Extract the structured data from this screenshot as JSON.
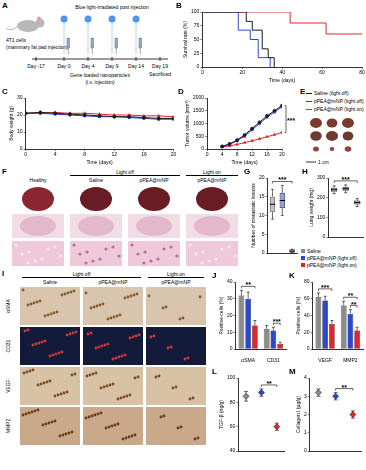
{
  "figure": {
    "schematic": {
      "panel": "A",
      "cells": "4T1 cells",
      "cells_note": "(mammary fat pad injection)",
      "light": "Blue light-irradiated post injection",
      "nanoparticles": "Gene loaded nanoparticles",
      "nanoparticles_note": "(i.v. injection)",
      "days": [
        "Day -17",
        "Day 0",
        "Day 4",
        "Day 9",
        "Day 14",
        "Day 19"
      ],
      "end": "Sacrificed"
    },
    "tumors": {
      "panel": "E",
      "legend": [
        {
          "name": "Saline (light off)",
          "color": "#1a1a1a"
        },
        {
          "name": "pPEA@mNP (light off)",
          "color": "#2c48d0"
        },
        {
          "name": "pPEA@mNP (light on)",
          "color": "#e3262c"
        }
      ],
      "scale_bar": "1 cm"
    },
    "lungs": {
      "panel": "F",
      "columns": [
        {
          "group": "Healthy"
        },
        {
          "group": "Saline",
          "condition": "Light off"
        },
        {
          "group": "pPEA@mNP",
          "condition": "Light off"
        },
        {
          "group": "pPEA@mNP",
          "condition": "Light on"
        }
      ]
    },
    "ihc": {
      "panel": "I",
      "columns": [
        {
          "group": "Saline",
          "condition": "Light off"
        },
        {
          "group": "pPEA@mNP",
          "condition": "Light off"
        },
        {
          "group": "pPEA@mNP",
          "condition": "Light on"
        }
      ],
      "stains": [
        "αSMA",
        "CD31",
        "VEGF",
        "MMP2"
      ]
    },
    "legend": [
      {
        "name": "Saline",
        "color": "#8c8c8c"
      },
      {
        "name": "pPEA@mNP (light off)",
        "color": "#2c48d0"
      },
      {
        "name": "pPEA@mNP (light on)",
        "color": "#e3262c"
      }
    ]
  },
  "chart_data": [
    {
      "panel": "B",
      "type": "line",
      "line_style": "steps",
      "grid": false,
      "xlabel": "Time (days)",
      "ylabel": "Survival rate (%)",
      "xlim": [
        0,
        80
      ],
      "xticks": [
        0,
        20,
        40,
        60,
        80
      ],
      "ylim": [
        0,
        100
      ],
      "yticks": [
        0,
        25,
        50,
        75,
        100
      ],
      "series": [
        {
          "color": "#1a1a1a",
          "marker": "none",
          "x": [
            0,
            22,
            25,
            30,
            33,
            36
          ],
          "values": [
            100,
            83,
            67,
            33,
            17,
            0
          ]
        },
        {
          "color": "#2c48d0",
          "marker": "none",
          "x": [
            0,
            18,
            24,
            28,
            34
          ],
          "values": [
            100,
            67,
            50,
            17,
            0
          ]
        },
        {
          "color": "#e3262c",
          "marker": "none",
          "x": [
            0,
            40,
            44,
            55,
            62,
            80
          ],
          "values": [
            100,
            100,
            80,
            80,
            60,
            60
          ]
        }
      ]
    },
    {
      "panel": "C",
      "type": "line",
      "grid": false,
      "xlabel": "Time (days)",
      "ylabel": "Body weight (g)",
      "xlim": [
        0,
        20
      ],
      "xticks": [
        0,
        4,
        8,
        12,
        16,
        20
      ],
      "ylim": [
        0,
        30
      ],
      "yticks": [
        0,
        10,
        20,
        30
      ],
      "series": [
        {
          "color": "#1a1a1a",
          "marker": "circle",
          "x": [
            0,
            2,
            4,
            6,
            8,
            10,
            12,
            14,
            16,
            18,
            20
          ],
          "values": [
            21,
            21.5,
            21,
            20.5,
            20,
            19.5,
            19,
            19,
            18.5,
            18,
            18
          ]
        },
        {
          "color": "#2c48d0",
          "marker": "rect",
          "x": [
            0,
            2,
            4,
            6,
            8,
            10,
            12,
            14,
            16,
            18,
            20
          ],
          "values": [
            21,
            21,
            20.5,
            20,
            19.5,
            19,
            19,
            18.5,
            18,
            17.5,
            17.5
          ]
        },
        {
          "color": "#e3262c",
          "marker": "triangle",
          "x": [
            0,
            2,
            4,
            6,
            8,
            10,
            12,
            14,
            16,
            18,
            20
          ],
          "values": [
            21,
            21.5,
            21.5,
            21,
            21,
            20.5,
            20,
            20,
            19.5,
            19.5,
            19
          ]
        }
      ]
    },
    {
      "panel": "D",
      "type": "line",
      "grid": false,
      "xlabel": "Time (days)",
      "ylabel": "Tumor volume (mm³)",
      "xlim": [
        0,
        20
      ],
      "xticks": [
        0,
        4,
        8,
        12,
        16,
        20
      ],
      "ylim": [
        0,
        2000
      ],
      "yticks": [
        0,
        500,
        1000,
        1500,
        2000
      ],
      "series": [
        {
          "color": "#1a1a1a",
          "marker": "circle",
          "x": [
            4,
            6,
            8,
            10,
            12,
            14,
            16,
            18,
            20
          ],
          "values": [
            100,
            200,
            350,
            550,
            800,
            1050,
            1300,
            1500,
            1700
          ]
        },
        {
          "color": "#2c48d0",
          "marker": "rect",
          "x": [
            4,
            6,
            8,
            10,
            12,
            14,
            16,
            18,
            20
          ],
          "values": [
            100,
            180,
            320,
            500,
            750,
            1000,
            1250,
            1450,
            1650
          ]
        },
        {
          "color": "#e3262c",
          "marker": "triangle",
          "x": [
            4,
            6,
            8,
            10,
            12,
            14,
            16,
            18,
            20
          ],
          "values": [
            80,
            120,
            180,
            250,
            320,
            400,
            480,
            560,
            650
          ]
        }
      ],
      "annotations": [
        {
          "text": "***",
          "from": 0,
          "to": 2
        }
      ]
    },
    {
      "panel": "G",
      "type": "box",
      "grid": false,
      "tick_labels": "y",
      "ylabel": "Number of metastatic lesions",
      "ylim": [
        0,
        20
      ],
      "yticks": [
        0,
        5,
        10,
        15,
        20
      ],
      "categories": [
        null,
        null,
        null
      ],
      "colors": [
        "#8c8c8c",
        "#2c48d0",
        "#e3262c"
      ],
      "boxes": [
        {
          "min": 9,
          "q1": 11,
          "median": 13,
          "q3": 15,
          "max": 17
        },
        {
          "min": 10,
          "q1": 12,
          "median": 14,
          "q3": 16,
          "max": 18
        },
        {
          "min": 0,
          "q1": 0,
          "median": 0.5,
          "q3": 1,
          "max": 1
        }
      ],
      "annotations": [
        {
          "text": "***",
          "from": 0,
          "to": 2
        }
      ]
    },
    {
      "panel": "H",
      "type": "box",
      "grid": false,
      "tick_labels": "y",
      "ylabel": "Lung weight (mg)",
      "ylim": [
        0,
        300
      ],
      "yticks": [
        0,
        100,
        200,
        300
      ],
      "categories": [
        null,
        null,
        null
      ],
      "colors": [
        "#8c8c8c",
        "#2c48d0",
        "#e3262c"
      ],
      "boxes": [
        {
          "min": 220,
          "q1": 230,
          "median": 240,
          "q3": 250,
          "max": 260
        },
        {
          "min": 225,
          "q1": 235,
          "median": 245,
          "q3": 255,
          "max": 265
        },
        {
          "min": 155,
          "q1": 165,
          "median": 175,
          "q3": 185,
          "max": 195
        }
      ],
      "annotations": [
        {
          "text": "***",
          "from": 0,
          "to": 2
        }
      ]
    },
    {
      "panel": "J",
      "type": "bar",
      "grid": false,
      "ylabel": "Positive cells (%)",
      "categories": [
        "αSMA",
        "CD31"
      ],
      "ylim": [
        0,
        40
      ],
      "yticks": [
        0,
        10,
        20,
        30,
        40
      ],
      "series": [
        {
          "color": "#8c8c8c",
          "values": [
            32,
            12
          ],
          "errors": [
            3,
            2
          ]
        },
        {
          "color": "#2c48d0",
          "values": [
            30,
            11
          ],
          "errors": [
            4,
            2
          ]
        },
        {
          "color": "#e3262c",
          "values": [
            14,
            3
          ],
          "errors": [
            3,
            1
          ]
        }
      ],
      "annotations": [
        {
          "text": "**",
          "category": "αSMA",
          "from": 0,
          "to": 2
        },
        {
          "text": "***",
          "category": "CD31",
          "from": 1,
          "to": 2
        }
      ]
    },
    {
      "panel": "K",
      "type": "bar",
      "grid": false,
      "ylabel": "Positive cells (%)",
      "categories": [
        "VEGF",
        "MMP2"
      ],
      "ylim": [
        0,
        80
      ],
      "yticks": [
        0,
        20,
        40,
        60,
        80
      ],
      "series": [
        {
          "color": "#8c8c8c",
          "values": [
            62,
            52
          ],
          "errors": [
            5,
            5
          ]
        },
        {
          "color": "#2c48d0",
          "values": [
            58,
            42
          ],
          "errors": [
            5,
            5
          ]
        },
        {
          "color": "#e3262c",
          "values": [
            30,
            22
          ],
          "errors": [
            4,
            4
          ]
        }
      ],
      "annotations": [
        {
          "text": "***",
          "category": "VEGF",
          "from": 0,
          "to": 2
        },
        {
          "text": "**",
          "category": "MMP2",
          "from": 1,
          "to": 2
        },
        {
          "text": "**",
          "category": "MMP2",
          "from": 0,
          "to": 2
        }
      ]
    },
    {
      "panel": "L",
      "type": "dot",
      "marker": "rectRot",
      "grid": false,
      "tick_labels": "y",
      "ylabel": "TGF-β (ng/g)",
      "categories": [
        null,
        null,
        null
      ],
      "values": [
        85,
        88,
        60
      ],
      "errors": [
        4,
        3,
        3
      ],
      "colors": [
        "#8c8c8c",
        "#2c48d0",
        "#e3262c"
      ],
      "ylim": [
        40,
        100
      ],
      "yticks": [
        40,
        60,
        80,
        100
      ],
      "annotations": [
        {
          "text": "**",
          "from": 1,
          "to": 2
        }
      ]
    },
    {
      "panel": "M",
      "type": "dot",
      "marker": "rectRot",
      "grid": false,
      "tick_labels": "y",
      "ylabel": "Collagen I (μg/g)",
      "categories": [
        null,
        null,
        null
      ],
      "values": [
        3.2,
        3.0,
        2.0
      ],
      "errors": [
        0.2,
        0.2,
        0.2
      ],
      "colors": [
        "#8c8c8c",
        "#2c48d0",
        "#e3262c"
      ],
      "ylim": [
        0,
        4
      ],
      "yticks": [
        0,
        1,
        2,
        3,
        4
      ],
      "annotations": [
        {
          "text": "**",
          "from": 1,
          "to": 2
        }
      ]
    }
  ]
}
